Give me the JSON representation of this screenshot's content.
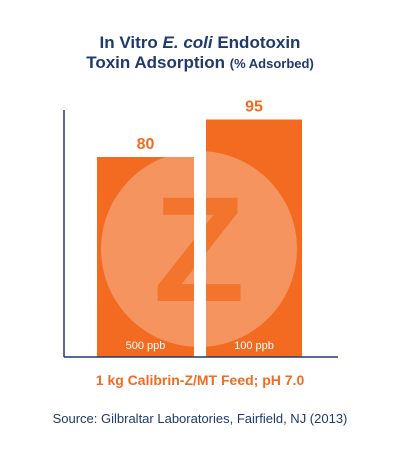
{
  "title": {
    "line1_pre": "In Vitro ",
    "line1_italic": "E. coli",
    "line1_post": " Endotoxin",
    "line2_main": "Toxin Adsorption ",
    "line2_small": "(% Adsorbed)"
  },
  "colors": {
    "bar": "#f26b21",
    "title": "#1f3a6e",
    "axis": "#1f3a6e",
    "logo_overlay": "#ffffff"
  },
  "logo": {
    "letter": "Z"
  },
  "chart_data": {
    "type": "bar",
    "categories": [
      "500 ppb",
      "100 ppb"
    ],
    "values": [
      80,
      95
    ],
    "title": "In Vitro E. coli Endotoxin Toxin Adsorption (% Adsorbed)",
    "xlabel": "1 kg Calibrin-Z/MT Feed; pH 7.0",
    "ylabel": "",
    "ylim": [
      0,
      100
    ],
    "grid": false,
    "legend": "none"
  },
  "source": "Source: Gilbraltar Laboratories, Fairfield, NJ (2013)"
}
